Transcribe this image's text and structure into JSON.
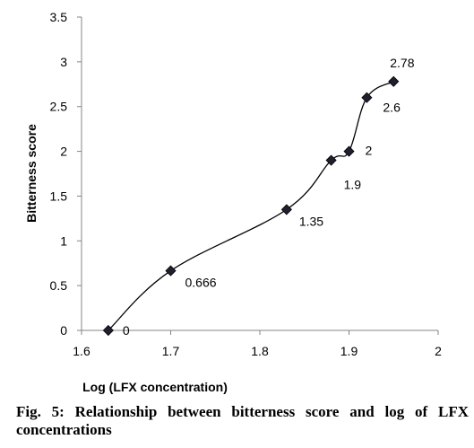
{
  "chart_data": {
    "type": "scatter",
    "xlabel": "Log (LFX concentration)",
    "ylabel": "Bitterness score",
    "xlim": [
      1.6,
      2
    ],
    "ylim": [
      0,
      3.5
    ],
    "x_ticks": [
      "1.6",
      "1.7",
      "1.8",
      "1.9",
      "2"
    ],
    "y_ticks": [
      "0",
      "0.5",
      "1",
      "1.5",
      "2",
      "2.5",
      "3",
      "3.5"
    ],
    "series": [
      {
        "marker": "diamond",
        "color": "#000000",
        "points": [
          {
            "x": 1.63,
            "y": 0,
            "label": "0"
          },
          {
            "x": 1.7,
            "y": 0.666,
            "label": "0.666"
          },
          {
            "x": 1.83,
            "y": 1.35,
            "label": "1.35"
          },
          {
            "x": 1.88,
            "y": 1.9,
            "label": "1.9"
          },
          {
            "x": 1.9,
            "y": 2,
            "label": "2"
          },
          {
            "x": 1.92,
            "y": 2.6,
            "label": "2.6"
          },
          {
            "x": 1.95,
            "y": 2.78,
            "label": "2.78"
          }
        ]
      }
    ],
    "trendline": "polynomial",
    "grid": false,
    "legend": "none"
  },
  "caption": "Fig. 5: Relationship between bitterness score and log of LFX concentrations"
}
